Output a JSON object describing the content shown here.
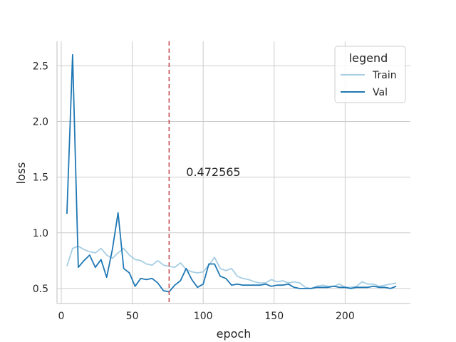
{
  "chart_data": {
    "type": "line",
    "xlabel": "epoch",
    "ylabel": "loss",
    "xlim": [
      -3,
      246
    ],
    "ylim": [
      0.365,
      2.72
    ],
    "xticks": [
      0,
      50,
      100,
      150,
      200
    ],
    "yticks": [
      0.5,
      1.0,
      1.5,
      2.0,
      2.5
    ],
    "ytick_labels": [
      "0.5",
      "1.0",
      "1.5",
      "2.0",
      "2.5"
    ],
    "grid": true,
    "legend": {
      "title": "legend",
      "placement": "top-right"
    },
    "series": [
      {
        "name": "Train",
        "color": "#a6cee3",
        "x": [
          4,
          8,
          12,
          16,
          20,
          24,
          28,
          32,
          36,
          40,
          44,
          48,
          52,
          56,
          60,
          64,
          68,
          72,
          76,
          80,
          84,
          88,
          92,
          96,
          100,
          104,
          108,
          112,
          116,
          120,
          124,
          128,
          132,
          136,
          140,
          144,
          148,
          152,
          156,
          160,
          164,
          168,
          172,
          176,
          180,
          184,
          188,
          192,
          196,
          200,
          204,
          208,
          212,
          216,
          220,
          224,
          228,
          232,
          236
        ],
        "y": [
          0.7,
          0.86,
          0.88,
          0.85,
          0.83,
          0.82,
          0.86,
          0.8,
          0.77,
          0.82,
          0.86,
          0.8,
          0.76,
          0.75,
          0.72,
          0.71,
          0.75,
          0.71,
          0.7,
          0.69,
          0.73,
          0.67,
          0.65,
          0.64,
          0.65,
          0.71,
          0.78,
          0.68,
          0.66,
          0.68,
          0.61,
          0.59,
          0.58,
          0.56,
          0.55,
          0.55,
          0.58,
          0.56,
          0.57,
          0.55,
          0.56,
          0.55,
          0.51,
          0.5,
          0.52,
          0.53,
          0.52,
          0.52,
          0.54,
          0.51,
          0.51,
          0.52,
          0.56,
          0.54,
          0.54,
          0.52,
          0.53,
          0.54,
          0.55
        ]
      },
      {
        "name": "Val",
        "color": "#1f78b4",
        "x": [
          4,
          8,
          12,
          16,
          20,
          24,
          28,
          32,
          36,
          40,
          44,
          48,
          52,
          56,
          60,
          64,
          68,
          72,
          76,
          80,
          84,
          88,
          92,
          96,
          100,
          104,
          108,
          112,
          116,
          120,
          124,
          128,
          132,
          136,
          140,
          144,
          148,
          152,
          156,
          160,
          164,
          168,
          172,
          176,
          180,
          184,
          188,
          192,
          196,
          200,
          204,
          208,
          212,
          216,
          220,
          224,
          228,
          232,
          236
        ],
        "y": [
          1.17,
          2.6,
          0.69,
          0.75,
          0.8,
          0.69,
          0.76,
          0.6,
          0.85,
          1.18,
          0.68,
          0.64,
          0.52,
          0.59,
          0.58,
          0.59,
          0.55,
          0.48,
          0.47,
          0.53,
          0.57,
          0.68,
          0.58,
          0.51,
          0.54,
          0.72,
          0.72,
          0.61,
          0.59,
          0.53,
          0.54,
          0.53,
          0.53,
          0.53,
          0.53,
          0.54,
          0.52,
          0.53,
          0.53,
          0.54,
          0.51,
          0.5,
          0.5,
          0.5,
          0.51,
          0.51,
          0.51,
          0.52,
          0.51,
          0.51,
          0.5,
          0.51,
          0.51,
          0.51,
          0.52,
          0.51,
          0.51,
          0.5,
          0.52
        ]
      }
    ],
    "vline": {
      "x": 76,
      "color": "#c44e52",
      "style": "dashed"
    },
    "annotation": {
      "text": "0.472565",
      "x": 88,
      "y": 1.55
    }
  }
}
